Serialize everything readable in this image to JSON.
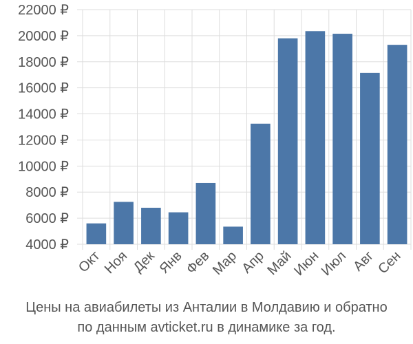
{
  "chart_data": {
    "type": "bar",
    "categories": [
      "Окт",
      "Ноя",
      "Дек",
      "Янв",
      "Фев",
      "Мар",
      "Апр",
      "Май",
      "Июн",
      "Июл",
      "Авг",
      "Сен"
    ],
    "values": [
      5600,
      7250,
      6800,
      6450,
      8700,
      5350,
      13250,
      19800,
      20350,
      20150,
      17150,
      19300
    ],
    "ylim": [
      4000,
      22000
    ],
    "yticks": [
      4000,
      6000,
      8000,
      10000,
      12000,
      14000,
      16000,
      18000,
      20000,
      22000
    ],
    "currency_suffix": " ₽",
    "grid": true,
    "bar_color": "#4c77a8",
    "grid_color": "#dddddd"
  },
  "caption": {
    "line1": "Цены на авиабилеты из Анталии в Молдавию и обратно",
    "line2": "по данным avticket.ru в динамике за год."
  }
}
